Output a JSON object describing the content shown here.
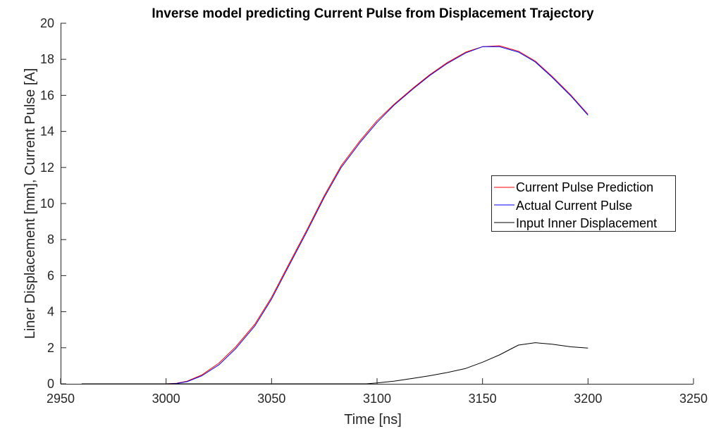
{
  "chart_data": {
    "type": "line",
    "title": "Inverse model predicting Current Pulse from Displacement Trajectory",
    "xlabel": "Time [ns]",
    "ylabel": "Liner Displacement [mm], Current Pulse [A]",
    "xlim": [
      2950,
      3250
    ],
    "ylim": [
      0,
      20
    ],
    "xticks": [
      2950,
      3000,
      3050,
      3100,
      3150,
      3200,
      3250
    ],
    "yticks": [
      0,
      2,
      4,
      6,
      8,
      10,
      12,
      14,
      16,
      18,
      20
    ],
    "grid": false,
    "legend_position": "right",
    "series": [
      {
        "name": "Current Pulse Prediction",
        "color": "#ff0000",
        "x": [
          2960,
          3000,
          3005,
          3010,
          3017,
          3025,
          3033,
          3042,
          3050,
          3058,
          3067,
          3075,
          3083,
          3092,
          3100,
          3108,
          3117,
          3125,
          3133,
          3142,
          3150,
          3158,
          3167,
          3175,
          3183,
          3192,
          3200
        ],
        "y": [
          0,
          0,
          0.03,
          0.15,
          0.5,
          1.15,
          2.05,
          3.3,
          4.8,
          6.6,
          8.6,
          10.45,
          12.1,
          13.5,
          14.6,
          15.5,
          16.4,
          17.15,
          17.8,
          18.4,
          18.7,
          18.75,
          18.45,
          17.9,
          17.05,
          16.0,
          14.95
        ]
      },
      {
        "name": "Actual Current Pulse",
        "color": "#0000ff",
        "x": [
          2960,
          3000,
          3005,
          3010,
          3017,
          3025,
          3033,
          3042,
          3050,
          3058,
          3067,
          3075,
          3083,
          3092,
          3100,
          3108,
          3117,
          3125,
          3133,
          3142,
          3150,
          3158,
          3167,
          3175,
          3183,
          3192,
          3200
        ],
        "y": [
          0,
          0,
          0.02,
          0.12,
          0.45,
          1.05,
          1.95,
          3.2,
          4.7,
          6.5,
          8.5,
          10.35,
          12.0,
          13.4,
          14.5,
          15.45,
          16.35,
          17.1,
          17.75,
          18.35,
          18.7,
          18.7,
          18.4,
          17.85,
          17.0,
          15.95,
          14.9
        ]
      },
      {
        "name": "Input Inner Displacement",
        "color": "#000000",
        "x": [
          2960,
          3095,
          3100,
          3108,
          3117,
          3125,
          3133,
          3142,
          3150,
          3158,
          3167,
          3175,
          3183,
          3192,
          3200
        ],
        "y": [
          0,
          0,
          0.05,
          0.15,
          0.3,
          0.45,
          0.62,
          0.85,
          1.2,
          1.6,
          2.15,
          2.28,
          2.2,
          2.05,
          1.98
        ]
      }
    ]
  }
}
